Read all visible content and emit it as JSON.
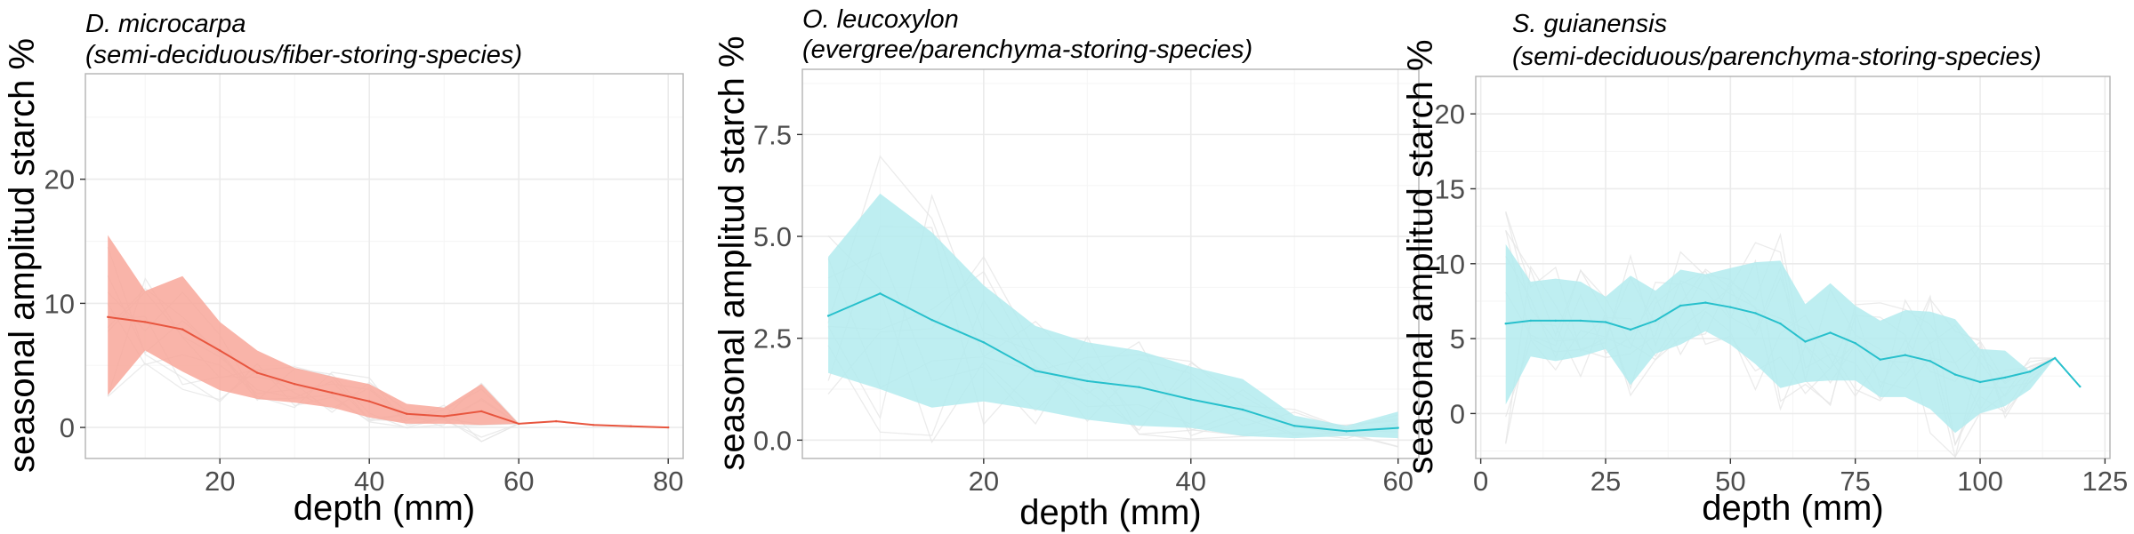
{
  "chart_data": [
    {
      "type": "line",
      "title_line1": "D. microcarpa",
      "title_line2": "(semi-deciduous/fiber-storing-species)",
      "xlabel": "depth (mm)",
      "ylabel": "seasonal amplitud starch %",
      "xlim": [
        2,
        82
      ],
      "ylim": [
        -2.5,
        28.5
      ],
      "xticks": [
        20,
        40,
        60,
        80
      ],
      "yticks": [
        0,
        10,
        20
      ],
      "color": "#e8563f",
      "fill": "#f8a79a",
      "series": [
        {
          "x": [
            5,
            10,
            15,
            20,
            25,
            30,
            35,
            40,
            45,
            50,
            55,
            60,
            65,
            70,
            75,
            80
          ],
          "mean": [
            8.9,
            8.5,
            7.9,
            6.2,
            4.4,
            3.5,
            2.8,
            2.1,
            1.1,
            0.9,
            1.3,
            0.3,
            0.5,
            0.2,
            0.1,
            0.0
          ],
          "upper": [
            15.5,
            11.0,
            12.2,
            8.5,
            6.2,
            4.8,
            4.1,
            3.5,
            1.9,
            1.6,
            3.5,
            0.3,
            0.5,
            0.2,
            0.1,
            0.0
          ],
          "lower": [
            2.6,
            6.2,
            4.5,
            3.0,
            2.3,
            2.0,
            1.6,
            0.8,
            0.3,
            0.3,
            0.2,
            0.3,
            0.5,
            0.2,
            0.1,
            0.0
          ]
        }
      ]
    },
    {
      "type": "line",
      "title_line1": "O. leucoxylon",
      "title_line2": "(evergree/parenchyma-storing-species)",
      "xlabel": "depth (mm)",
      "ylabel": "seasonal amplitud starch %",
      "xlim": [
        2.5,
        62
      ],
      "ylim": [
        -0.45,
        9.1
      ],
      "xticks": [
        20,
        40,
        60
      ],
      "yticks": [
        0.0,
        2.5,
        5.0,
        7.5
      ],
      "ytick_labels": [
        "0.0",
        "2.5",
        "5.0",
        "7.5"
      ],
      "color": "#27c0cc",
      "fill": "#b3ebee",
      "series": [
        {
          "x": [
            5,
            10,
            15,
            20,
            25,
            30,
            35,
            40,
            45,
            50,
            55,
            60
          ],
          "mean": [
            3.05,
            3.6,
            2.95,
            2.4,
            1.7,
            1.45,
            1.3,
            1.0,
            0.75,
            0.35,
            0.22,
            0.3
          ],
          "upper": [
            4.5,
            6.05,
            5.1,
            3.8,
            2.8,
            2.4,
            2.2,
            1.8,
            1.5,
            0.6,
            0.35,
            0.7
          ],
          "lower": [
            1.65,
            1.25,
            0.8,
            0.95,
            0.75,
            0.5,
            0.35,
            0.3,
            0.1,
            0.05,
            0.1,
            0.05
          ]
        }
      ]
    },
    {
      "type": "line",
      "title_line1": "S. guianensis",
      "title_line2": "(semi-deciduous/parenchyma-storing-species)",
      "xlabel": "depth (mm)",
      "ylabel": "seasonal amplitud starch %",
      "xlim": [
        -1,
        126
      ],
      "ylim": [
        -3.0,
        22.5
      ],
      "xticks": [
        0,
        25,
        50,
        75,
        100,
        125
      ],
      "yticks": [
        0,
        5,
        10,
        15,
        20
      ],
      "color": "#27c0cc",
      "fill": "#b3ebee",
      "series": [
        {
          "x": [
            5,
            10,
            15,
            20,
            25,
            30,
            35,
            40,
            45,
            50,
            55,
            60,
            65,
            70,
            75,
            80,
            85,
            90,
            95,
            100,
            105,
            110,
            115,
            120
          ],
          "mean": [
            6.0,
            6.2,
            6.2,
            6.2,
            6.1,
            5.6,
            6.2,
            7.2,
            7.4,
            7.1,
            6.7,
            6.0,
            4.8,
            5.4,
            4.7,
            3.6,
            3.9,
            3.5,
            2.6,
            2.1,
            2.4,
            2.8,
            3.7,
            1.8
          ],
          "upper": [
            11.3,
            8.8,
            9.0,
            8.8,
            7.8,
            9.2,
            8.2,
            9.6,
            9.3,
            9.7,
            10.1,
            10.2,
            7.3,
            8.7,
            7.2,
            6.2,
            6.9,
            6.8,
            6.3,
            4.3,
            4.2,
            2.8,
            3.7,
            1.8
          ],
          "lower": [
            0.6,
            3.8,
            3.5,
            3.8,
            4.3,
            1.9,
            4.0,
            4.6,
            5.5,
            4.6,
            3.3,
            1.7,
            2.1,
            2.2,
            2.2,
            1.1,
            1.1,
            0.3,
            -1.3,
            0.0,
            0.5,
            1.6,
            3.7,
            1.8
          ]
        }
      ]
    }
  ]
}
